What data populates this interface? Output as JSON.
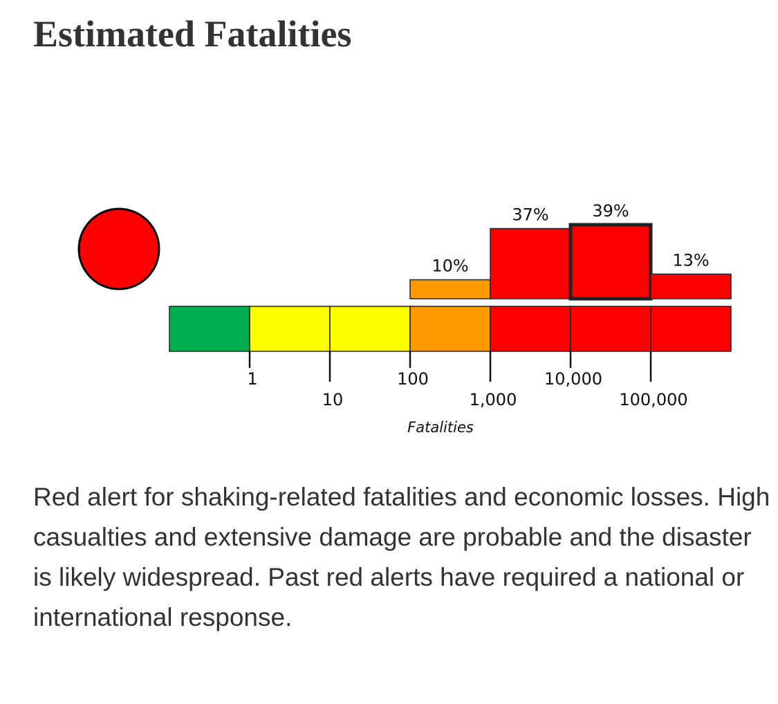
{
  "header": {
    "title": "Estimated Fatalities"
  },
  "chart_data": {
    "type": "pager",
    "alert_color": "#ff0000",
    "x_label": "Fatalities",
    "log_x": true,
    "xlim": [
      0.1,
      1000000
    ],
    "xticks": [
      1,
      10,
      100,
      {
        "value": 1000,
        "label": "1,000"
      },
      {
        "value": 10000,
        "label": "10,000"
      },
      {
        "value": 100000,
        "label": "100,000"
      }
    ],
    "colors": [
      "#00b050",
      "#ffff00",
      "#ffff00",
      "#ff9900",
      "#ff0000",
      "#ff0000",
      "#ff0000"
    ],
    "values": [
      0,
      0,
      0,
      10,
      37,
      39,
      13
    ],
    "value_labels": [
      null,
      null,
      null,
      "10%",
      "37%",
      "39%",
      "13%"
    ],
    "highlight_index": 5
  },
  "description": "Red alert for shaking-related fatalities and economic losses. High casualties and extensive damage are probable and the disaster is likely widespread. Past red alerts have required a national or international response."
}
